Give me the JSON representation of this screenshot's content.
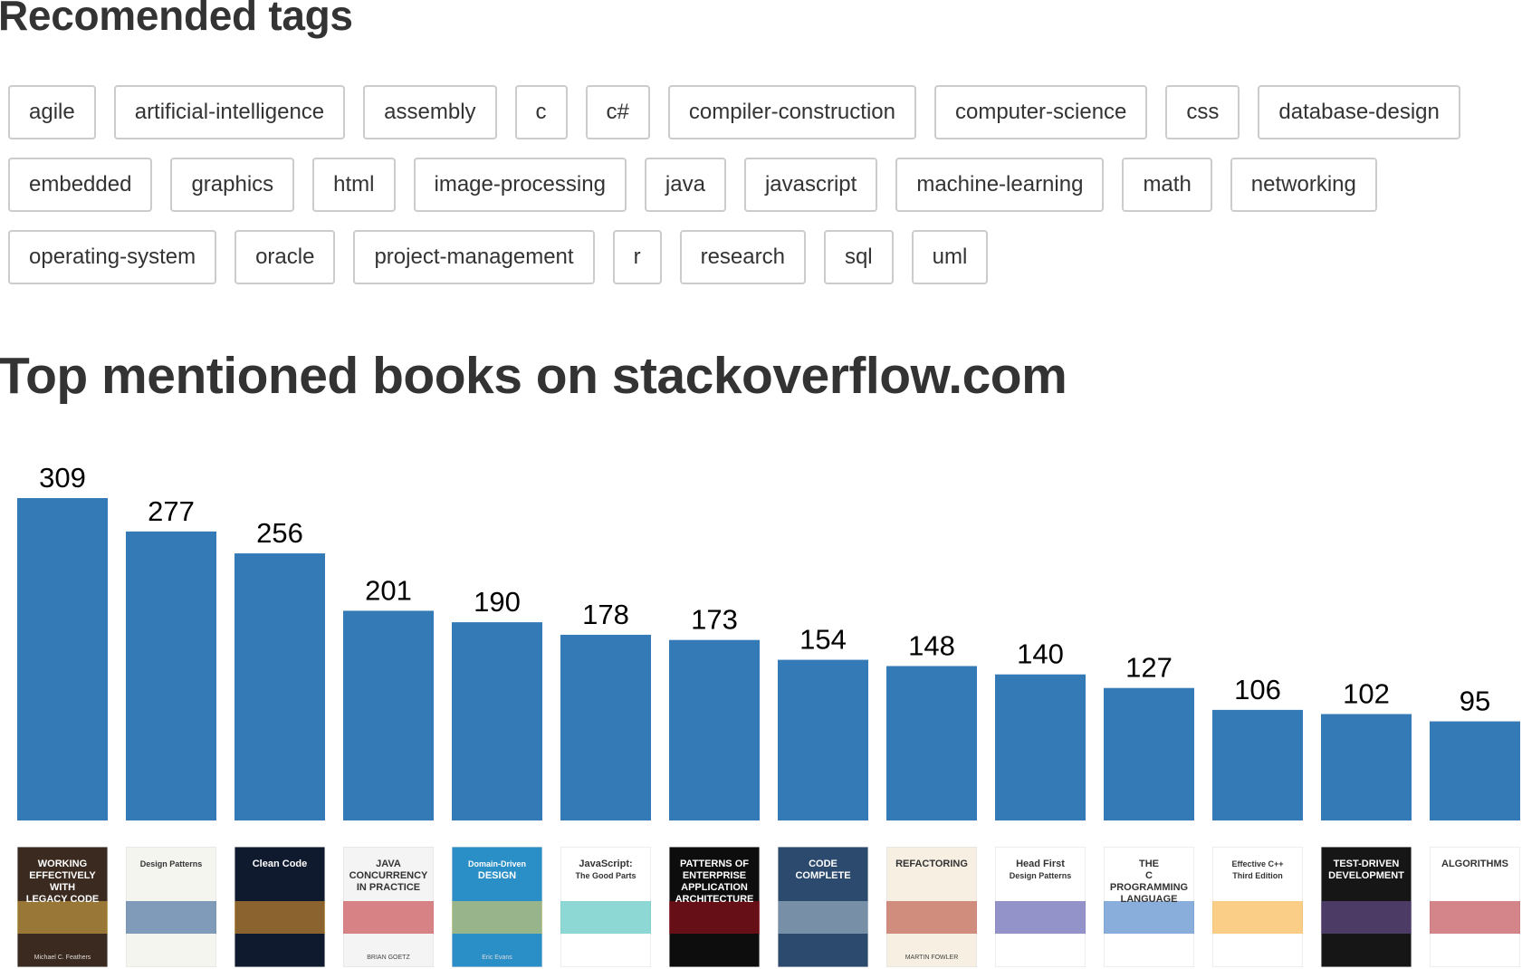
{
  "headings": {
    "tags_title": "Recomended tags",
    "chart_title": "Top mentioned books on stackoverflow.com"
  },
  "tags": [
    [
      "agile",
      "artificial-intelligence",
      "assembly",
      "c",
      "c#",
      "compiler-construction",
      "computer-science",
      "css",
      "database-design"
    ],
    [
      "embedded",
      "graphics",
      "html",
      "image-processing",
      "java",
      "javascript",
      "machine-learning",
      "math",
      "networking"
    ],
    [
      "operating-system",
      "oracle",
      "project-management",
      "r",
      "research",
      "sql",
      "uml"
    ]
  ],
  "colors": {
    "bar": "#337ab7",
    "tag_border": "#cccccc",
    "heading": "#333333"
  },
  "chart_data": {
    "type": "bar",
    "values": [
      309,
      277,
      256,
      201,
      190,
      178,
      173,
      154,
      148,
      140,
      127,
      106,
      102,
      95
    ],
    "ylim": [
      0,
      309
    ],
    "grid": false
  },
  "books": [
    {
      "cover_lines": [
        "WORKING",
        "EFFECTIVELY",
        "WITH",
        "LEGACY CODE"
      ],
      "author": "Michael C. Feathers",
      "color": "#3b2a1f",
      "accent": "#e8b84a"
    },
    {
      "cover_lines": [
        "Design Patterns"
      ],
      "author": "",
      "color": "#f5f5f0",
      "accent": "#1f4e8c"
    },
    {
      "cover_lines": [
        "Clean Code"
      ],
      "author": "",
      "color": "#0f1a2e",
      "accent": "#f0a030"
    },
    {
      "cover_lines": [
        "JAVA",
        "CONCURRENCY",
        "IN PRACTICE"
      ],
      "author": "BRIAN GOETZ",
      "color": "#f4f4f4",
      "accent": "#c0262b"
    },
    {
      "cover_lines": [
        "Domain-Driven",
        "DESIGN"
      ],
      "author": "Eric Evans",
      "color": "#2a8ec7",
      "accent": "#f2d35a"
    },
    {
      "cover_lines": [
        "JavaScript:",
        "The Good Parts"
      ],
      "author": "",
      "color": "#ffffff",
      "accent": "#2fb6b0"
    },
    {
      "cover_lines": [
        "PATTERNS OF",
        "ENTERPRISE",
        "APPLICATION",
        "ARCHITECTURE"
      ],
      "author": "",
      "color": "#0d0d0d",
      "accent": "#b3121f"
    },
    {
      "cover_lines": [
        "CODE",
        "COMPLETE"
      ],
      "author": "",
      "color": "#2c4a6e",
      "accent": "#b8c8d8"
    },
    {
      "cover_lines": [
        "REFACTORING"
      ],
      "author": "MARTIN FOWLER",
      "color": "#f6efe2",
      "accent": "#b03c2a"
    },
    {
      "cover_lines": [
        "Head First",
        "Design Patterns"
      ],
      "author": "",
      "color": "#ffffff",
      "accent": "#3b3b9c"
    },
    {
      "cover_lines": [
        "THE",
        "C",
        "PROGRAMMING",
        "LANGUAGE"
      ],
      "author": "",
      "color": "#ffffff",
      "accent": "#2a6bbf"
    },
    {
      "cover_lines": [
        "Effective C++",
        "Third Edition"
      ],
      "author": "",
      "color": "#ffffff",
      "accent": "#f5a623"
    },
    {
      "cover_lines": [
        "TEST-DRIVEN",
        "DEVELOPMENT"
      ],
      "author": "",
      "color": "#161616",
      "accent": "#7a5ca8"
    },
    {
      "cover_lines": [
        "ALGORITHMS"
      ],
      "author": "",
      "color": "#ffffff",
      "accent": "#b0202a"
    }
  ]
}
